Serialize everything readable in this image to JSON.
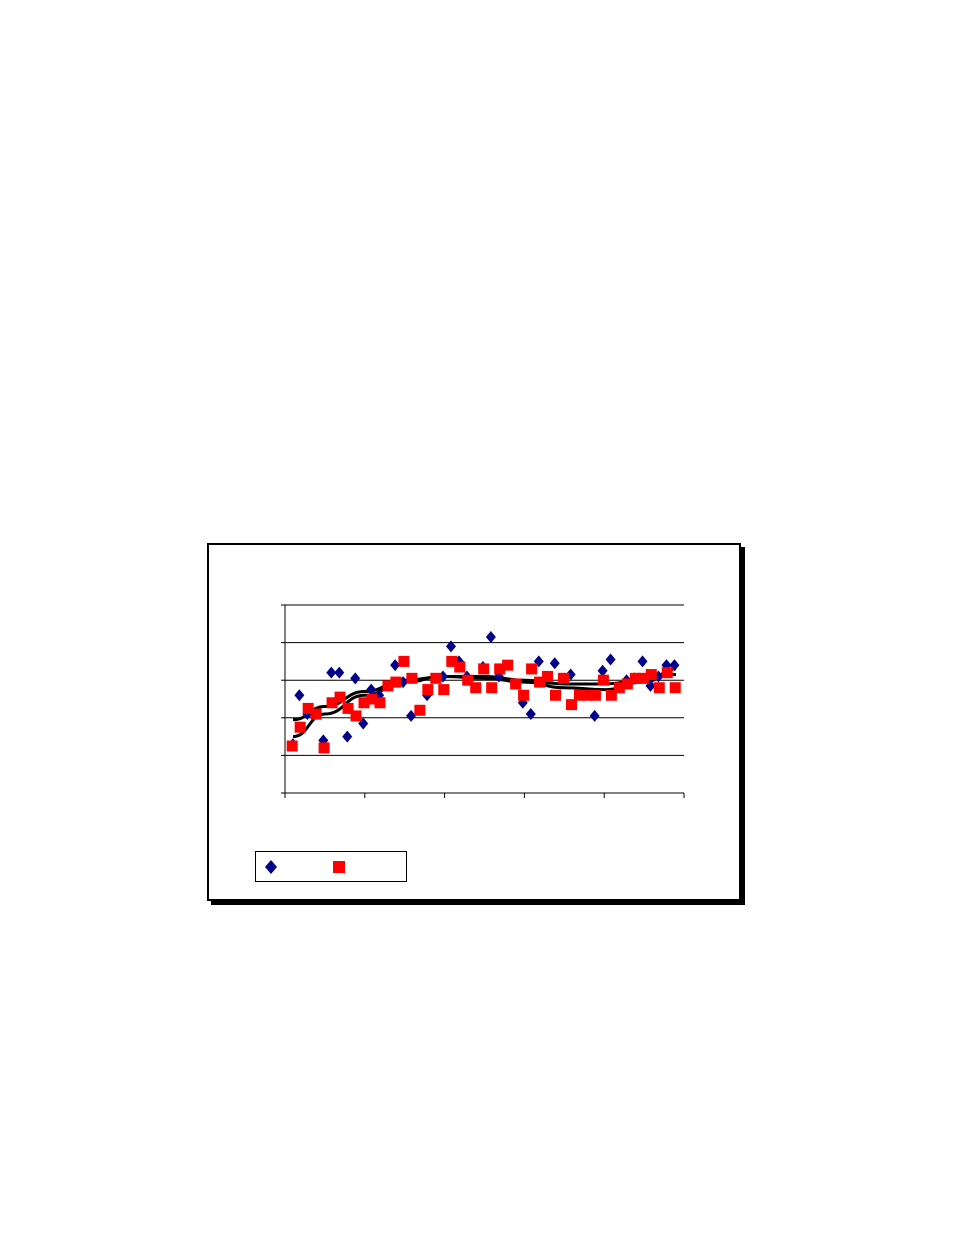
{
  "chart_data": {
    "type": "scatter",
    "xlim": [
      0,
      50
    ],
    "ylim": [
      0,
      5
    ],
    "x_tick_count": 6,
    "y_gridlines": [
      1,
      2,
      3,
      4,
      5
    ],
    "grid": true,
    "legend": "bottom-left",
    "series": [
      {
        "marker": "diamond",
        "color": "#00008B",
        "x": [
          1,
          1.8,
          2.8,
          4.8,
          5.8,
          6.8,
          7.8,
          8.8,
          9.8,
          10.8,
          11.8,
          13.8,
          14.8,
          15.8,
          17.8,
          19.8,
          20.8,
          21.8,
          22.8,
          24.8,
          25.8,
          26.8,
          29.8,
          30.8,
          31.8,
          33.8,
          35.8,
          38.8,
          39.8,
          40.8,
          42.8,
          43.8,
          44.8,
          45.8,
          46.8,
          47.8,
          48.8
        ],
        "y": [
          1.3,
          2.6,
          2.1,
          1.4,
          3.2,
          3.2,
          1.5,
          3.05,
          1.85,
          2.75,
          2.6,
          3.4,
          2.95,
          2.05,
          2.6,
          3.1,
          3.9,
          3.5,
          3.1,
          3.35,
          4.15,
          3.1,
          2.4,
          2.1,
          3.5,
          3.45,
          3.15,
          2.05,
          3.25,
          3.55,
          3.0,
          3.05,
          3.5,
          2.85,
          3.1,
          3.4,
          3.4
        ]
      },
      {
        "marker": "square",
        "color": "#FF0000",
        "x": [
          0.9,
          1.9,
          2.9,
          3.9,
          4.9,
          5.9,
          6.9,
          7.9,
          8.9,
          9.9,
          10.9,
          11.9,
          12.9,
          13.9,
          14.9,
          15.9,
          16.9,
          17.9,
          18.9,
          19.9,
          20.9,
          21.9,
          22.9,
          23.9,
          24.9,
          25.9,
          26.9,
          27.9,
          28.9,
          29.9,
          30.9,
          31.9,
          32.9,
          33.9,
          34.9,
          35.9,
          36.9,
          37.9,
          38.9,
          39.9,
          40.9,
          41.9,
          42.9,
          43.9,
          44.9,
          45.9,
          46.9,
          47.9,
          48.9
        ],
        "y": [
          1.25,
          1.75,
          2.25,
          2.1,
          1.2,
          2.4,
          2.55,
          2.25,
          2.05,
          2.4,
          2.5,
          2.4,
          2.85,
          2.95,
          3.5,
          3.05,
          2.2,
          2.75,
          3.05,
          2.75,
          3.5,
          3.35,
          3.0,
          2.8,
          3.3,
          2.8,
          3.3,
          3.4,
          2.9,
          2.6,
          3.3,
          2.95,
          3.1,
          2.6,
          3.05,
          2.35,
          2.6,
          2.6,
          2.6,
          3.0,
          2.6,
          2.8,
          2.9,
          3.05,
          3.05,
          3.15,
          2.8,
          3.2,
          2.8
        ]
      }
    ],
    "trendlines": [
      {
        "type": "polynomial",
        "color": "#000000",
        "x": [
          1,
          5,
          10,
          15,
          20,
          25,
          30,
          35,
          40,
          45,
          49
        ],
        "y": [
          1.5,
          2.1,
          2.6,
          2.95,
          3.1,
          3.1,
          3.0,
          2.9,
          2.9,
          3.0,
          3.15
        ]
      },
      {
        "type": "polynomial",
        "color": "#000000",
        "x": [
          1,
          5,
          10,
          15,
          20,
          25,
          30,
          35,
          40,
          45,
          49
        ],
        "y": [
          1.95,
          2.3,
          2.7,
          3.0,
          3.1,
          3.05,
          2.95,
          2.8,
          2.75,
          2.95,
          3.3
        ]
      }
    ]
  }
}
